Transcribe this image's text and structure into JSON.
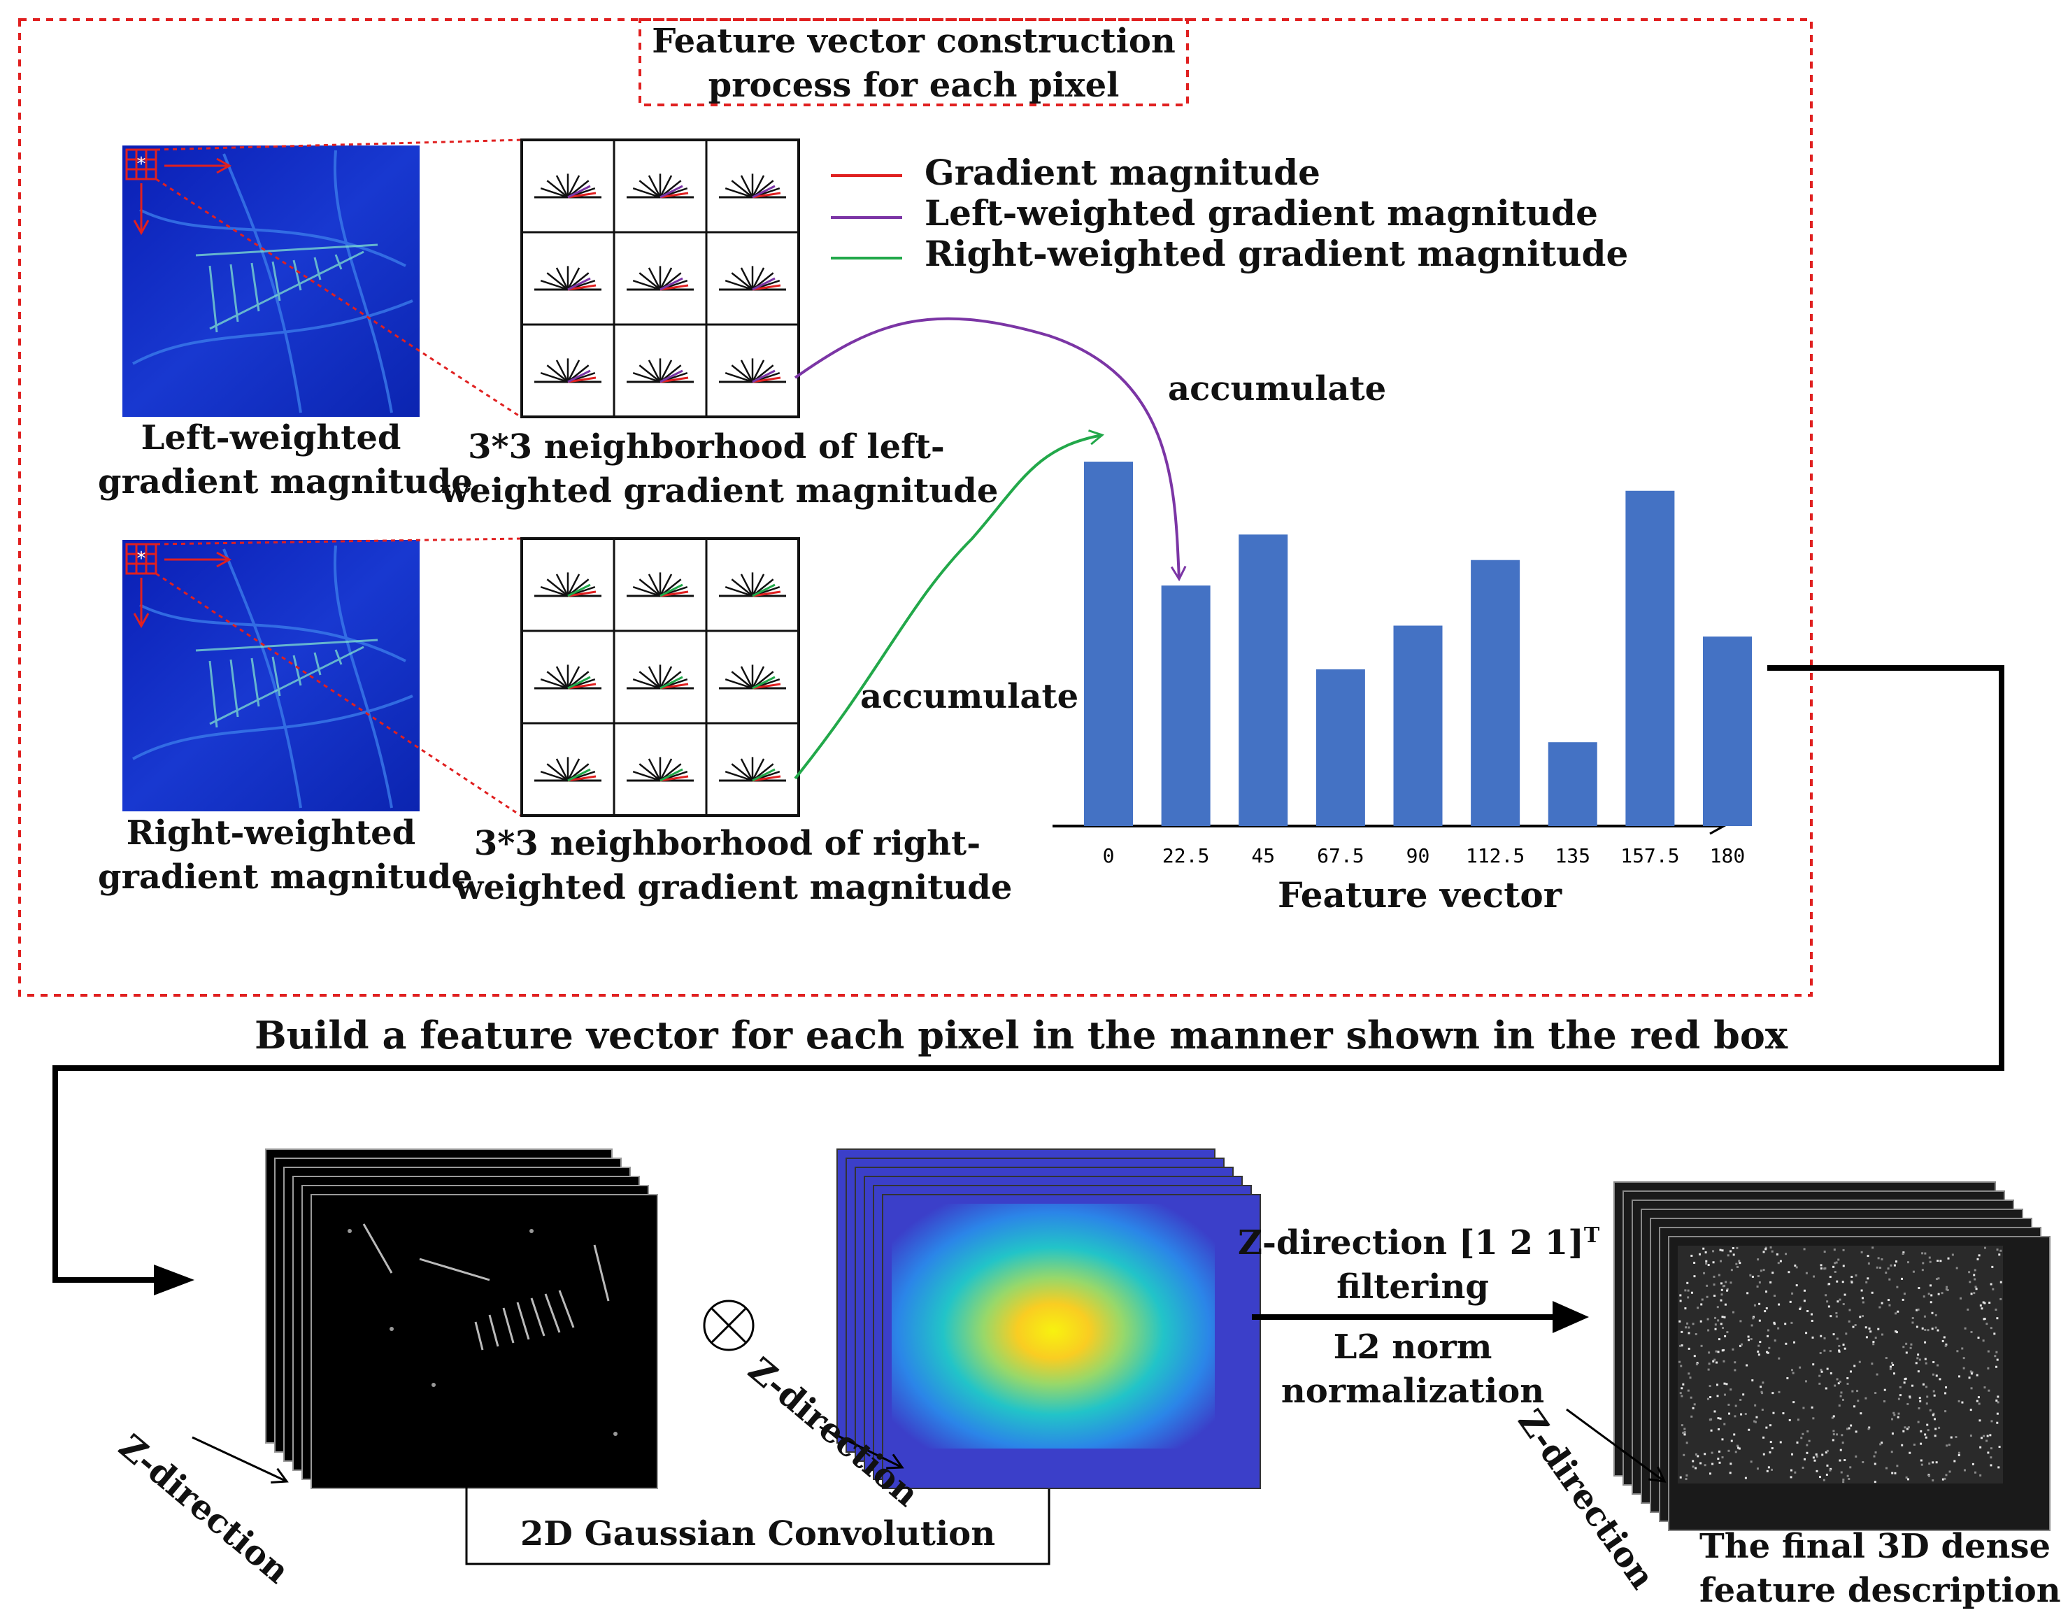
{
  "figure": {
    "title_line1": "Feature vector construction",
    "title_line2": "process for each pixel",
    "legend": [
      {
        "label": "Gradient magnitude",
        "color": "#e02020"
      },
      {
        "label": "Left-weighted gradient magnitude",
        "color": "#7b35a5"
      },
      {
        "label": "Right-weighted gradient magnitude",
        "color": "#22a84a"
      }
    ],
    "left_map": {
      "line1": "Left-weighted",
      "line2": "gradient magnitude"
    },
    "right_map": {
      "line1": "Right-weighted",
      "line2": "gradient magnitude"
    },
    "left_grid": {
      "line1": "3*3 neighborhood of left-",
      "line2": "weighted gradient magnitude"
    },
    "right_grid": {
      "line1": "3*3 neighborhood of right-",
      "line2": "weighted gradient magnitude"
    },
    "accumulate_top": "accumulate",
    "accumulate_bottom": "accumulate",
    "build_caption": "Build a feature vector for each pixel in the manner shown in the red box",
    "stack1_dir": "Z-direction",
    "stack2_dir": "Z-direction",
    "stack3_dir": "Z-direction",
    "gaussian_label": "2D Gaussian Convolution",
    "op1_line1": "Z-direction [1 2 1]",
    "op1_sup": "T",
    "op1_line2": "filtering",
    "op2_line1": "L2 norm",
    "op2_line2": "normalization",
    "final_line1": "The final 3D dense",
    "final_line2": "feature description",
    "convolution_symbol": "⊗"
  },
  "chart_data": {
    "type": "bar",
    "title": "",
    "xlabel": "Feature vector",
    "ylabel": "",
    "categories": [
      "0",
      "22.5",
      "45",
      "67.5",
      "90",
      "112.5",
      "135",
      "157.5",
      "180"
    ],
    "values": [
      1.0,
      0.66,
      0.8,
      0.43,
      0.55,
      0.73,
      0.23,
      0.92,
      0.52
    ],
    "ylim": [
      0,
      1.05
    ],
    "bar_color": "#4472c4"
  }
}
